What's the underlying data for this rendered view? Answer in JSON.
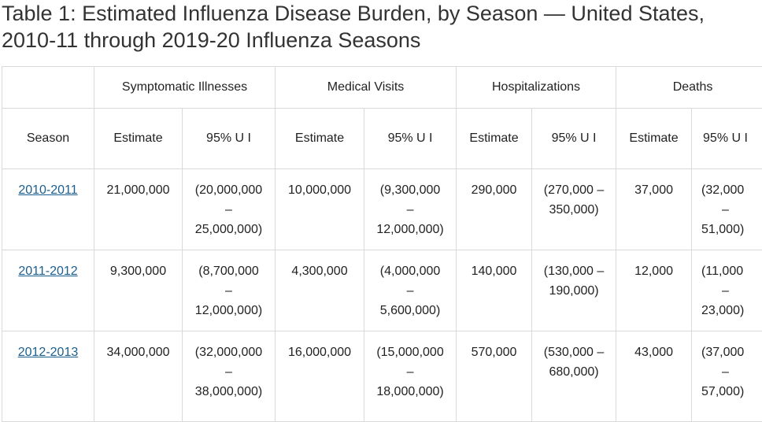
{
  "caption": "Table 1: Estimated Influenza Disease Burden, by Season — United States, 2010-11 through 2019-20 Influenza Seasons",
  "groups": {
    "symptomatic": "Symptomatic Illnesses",
    "medical": "Medical Visits",
    "hospitalizations": "Hospitalizations",
    "deaths": "Deaths"
  },
  "subheaders": {
    "season": "Season",
    "estimate": "Estimate",
    "ui": "95% U I"
  },
  "rows": [
    {
      "season": "2010-2011",
      "ill_est": "21,000,000",
      "ill_ui_1": "(20,000,000",
      "ill_ui_2": "–",
      "ill_ui_3": "25,000,000)",
      "med_est": "10,000,000",
      "med_ui_1": "(9,300,000",
      "med_ui_2": "–",
      "med_ui_3": "12,000,000)",
      "hosp_est": "290,000",
      "hosp_ui_1": "(270,000 –",
      "hosp_ui_2": "350,000)",
      "death_est": "37,000",
      "death_ui_1": "(32,000",
      "death_ui_2": "–",
      "death_ui_3": "51,000)"
    },
    {
      "season": "2011-2012",
      "ill_est": "9,300,000",
      "ill_ui_1": "(8,700,000",
      "ill_ui_2": "–",
      "ill_ui_3": "12,000,000)",
      "med_est": "4,300,000",
      "med_ui_1": "(4,000,000",
      "med_ui_2": "–",
      "med_ui_3": "5,600,000)",
      "hosp_est": "140,000",
      "hosp_ui_1": "(130,000 –",
      "hosp_ui_2": "190,000)",
      "death_est": "12,000",
      "death_ui_1": "(11,000",
      "death_ui_2": "–",
      "death_ui_3": "23,000)"
    },
    {
      "season": "2012-2013",
      "ill_est": "34,000,000",
      "ill_ui_1": "(32,000,000",
      "ill_ui_2": "–",
      "ill_ui_3": "38,000,000)",
      "med_est": "16,000,000",
      "med_ui_1": "(15,000,000",
      "med_ui_2": "–",
      "med_ui_3": "18,000,000)",
      "hosp_est": "570,000",
      "hosp_ui_1": "(530,000 –",
      "hosp_ui_2": "680,000)",
      "death_est": "43,000",
      "death_ui_1": "(37,000",
      "death_ui_2": "–",
      "death_ui_3": "57,000)"
    }
  ],
  "colors": {
    "link": "#1a5e8e",
    "border": "#d9d9d9",
    "text": "#222222"
  }
}
